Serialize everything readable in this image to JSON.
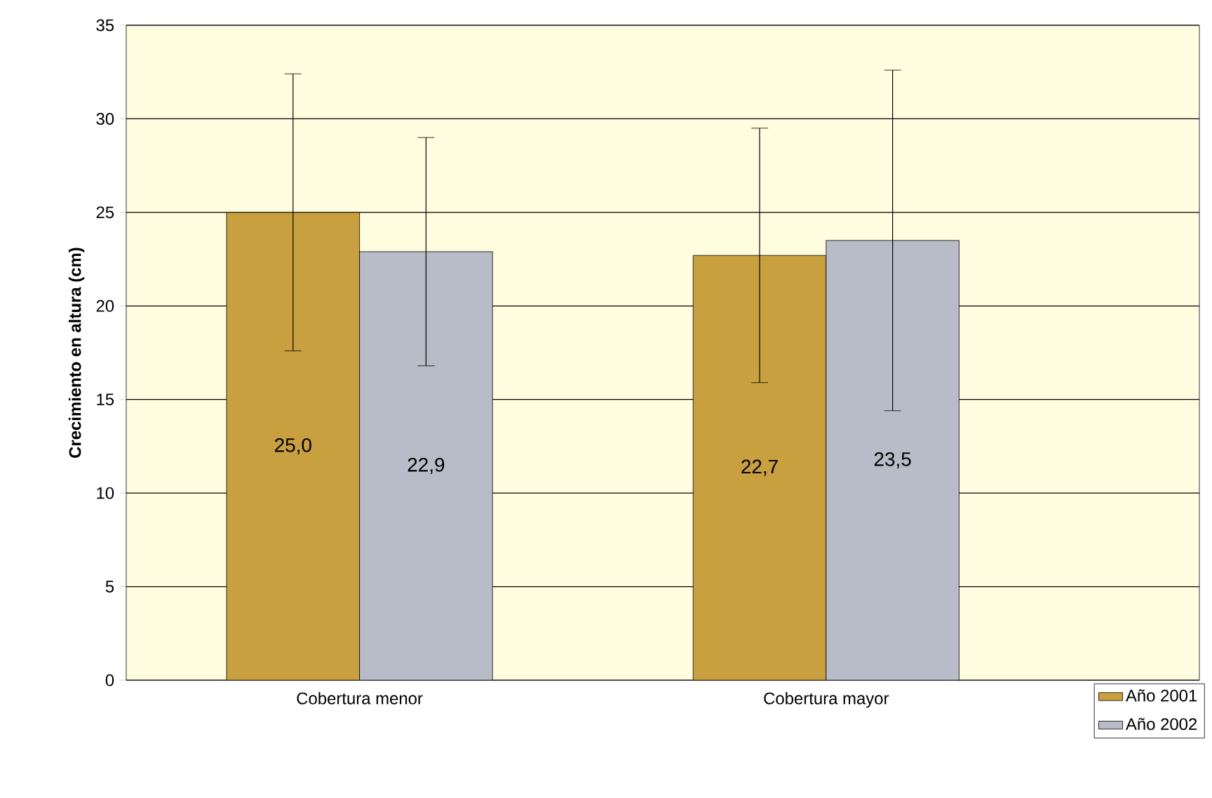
{
  "chart_data": {
    "type": "bar",
    "ylabel": "Crecimiento en altura (cm)",
    "categories": [
      "Cobertura menor",
      "Cobertura mayor"
    ],
    "series": [
      {
        "name": "Año 2001",
        "color": "#c9a040",
        "values": [
          25.0,
          22.7
        ],
        "errors": [
          7.4,
          6.8
        ],
        "value_labels": [
          "25,0",
          "22,7"
        ]
      },
      {
        "name": "Año 2002",
        "color": "#b8bcc8",
        "values": [
          22.9,
          23.5
        ],
        "errors": [
          6.1,
          9.1
        ],
        "value_labels": [
          "22,9",
          "23,5"
        ]
      }
    ],
    "ylim": [
      0,
      35
    ],
    "yticks": [
      0,
      5,
      10,
      15,
      20,
      25,
      30,
      35
    ],
    "grid": "y",
    "legend": "bottom right"
  }
}
